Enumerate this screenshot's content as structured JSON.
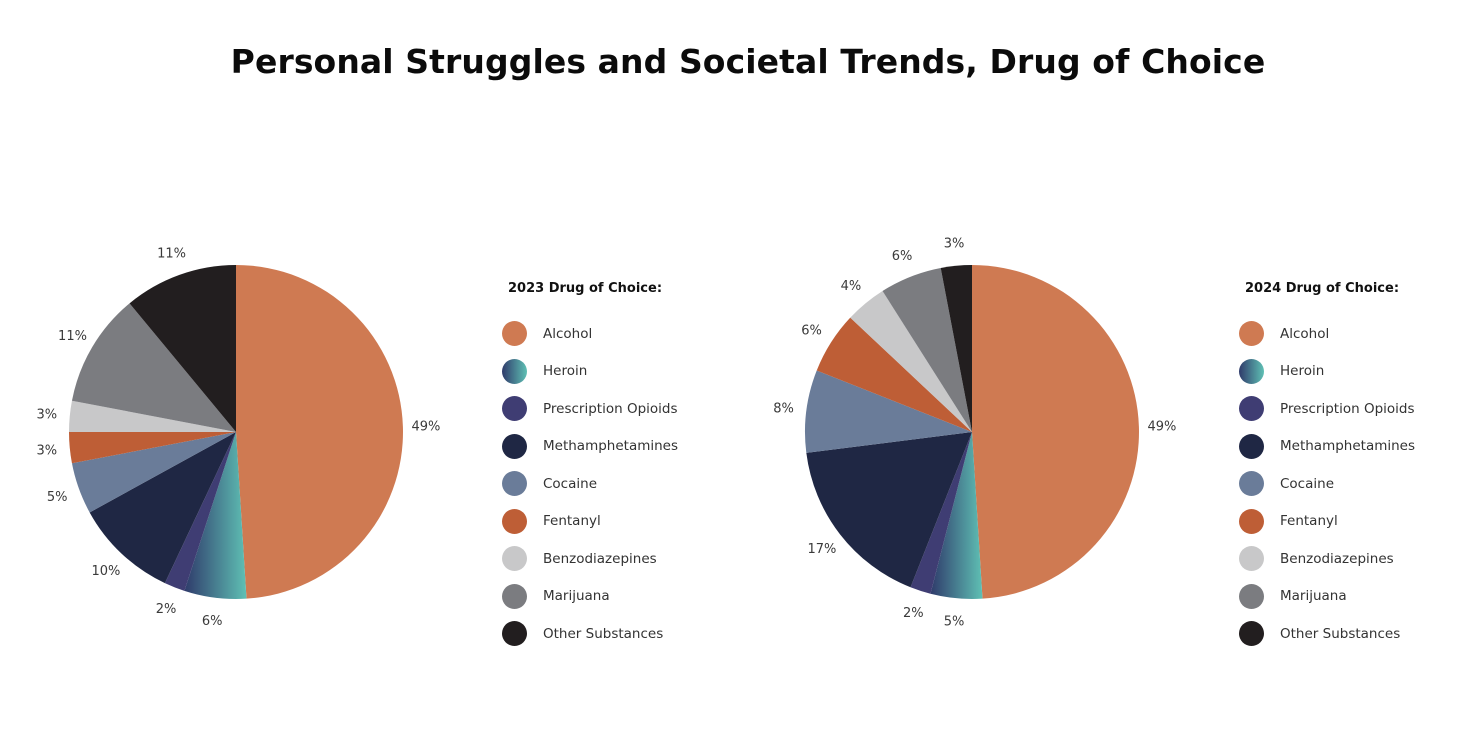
{
  "title": "Personal Struggles and Societal Trends, Drug of Choice",
  "colors": {
    "Alcohol": "#CF7A52",
    "Heroin": "gradient:#2F3B6B-#5FC0B4",
    "Prescription Opioids": "#3F3D73",
    "Methamphetamines": "#1F2744",
    "Cocaine": "#6A7C99",
    "Fentanyl": "#BE5E36",
    "Benzodiazepines": "#C8C8C9",
    "Marijuana": "#7B7C80",
    "Other Substances": "#221E1F"
  },
  "chart_data": [
    {
      "type": "pie",
      "title": "2023 Drug of Choice:",
      "series": [
        {
          "name": "Alcohol",
          "value": 49,
          "label": "49%"
        },
        {
          "name": "Heroin",
          "value": 6,
          "label": "6%"
        },
        {
          "name": "Prescription Opioids",
          "value": 2,
          "label": "2%"
        },
        {
          "name": "Methamphetamines",
          "value": 10,
          "label": "10%"
        },
        {
          "name": "Cocaine",
          "value": 5,
          "label": "5%"
        },
        {
          "name": "Fentanyl",
          "value": 3,
          "label": "3%"
        },
        {
          "name": "Benzodiazepines",
          "value": 3,
          "label": "3%"
        },
        {
          "name": "Marijuana",
          "value": 11,
          "label": "11%"
        },
        {
          "name": "Other Substances",
          "value": 11,
          "label": "11%"
        }
      ],
      "legend_position": "right"
    },
    {
      "type": "pie",
      "title": "2024 Drug of Choice:",
      "series": [
        {
          "name": "Alcohol",
          "value": 49,
          "label": "49%"
        },
        {
          "name": "Heroin",
          "value": 5,
          "label": "5%"
        },
        {
          "name": "Prescription Opioids",
          "value": 2,
          "label": "2%"
        },
        {
          "name": "Methamphetamines",
          "value": 17,
          "label": "17%"
        },
        {
          "name": "Cocaine",
          "value": 8,
          "label": "8%"
        },
        {
          "name": "Fentanyl",
          "value": 6,
          "label": "6%"
        },
        {
          "name": "Benzodiazepines",
          "value": 4,
          "label": "4%"
        },
        {
          "name": "Marijuana",
          "value": 6,
          "label": "6%"
        },
        {
          "name": "Other Substances",
          "value": 3,
          "label": "3%"
        }
      ],
      "legend_position": "right"
    }
  ]
}
